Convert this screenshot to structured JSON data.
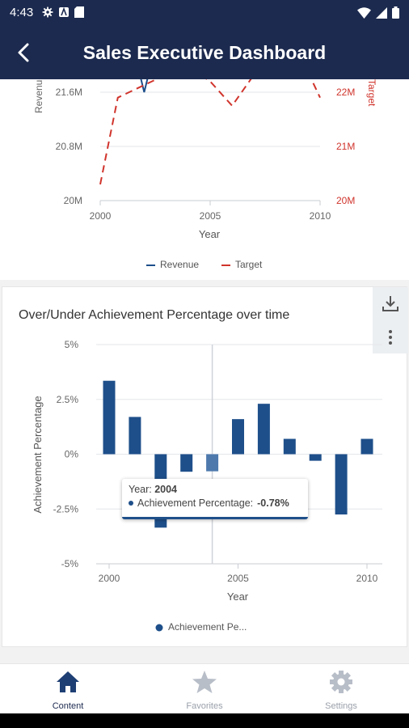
{
  "status_bar": {
    "time": "4:43"
  },
  "app_bar": {
    "title": "Sales Executive Dashboard"
  },
  "top_chart": {
    "chart_data": {
      "type": "line",
      "xlabel": "Year",
      "ylabel_left": "Revenue",
      "ylabel_right": "Target",
      "x_ticks": [
        "2000",
        "2005",
        "2010"
      ],
      "y_ticks_left": [
        "20M",
        "20.8M",
        "21.6M"
      ],
      "y_ticks_right": [
        "20M",
        "21M",
        "22M"
      ],
      "legend": [
        "Revenue",
        "Target"
      ],
      "legend_position": "bottom",
      "series": [
        {
          "name": "Revenue",
          "color": "#1e4f8a",
          "x": [
            2001.7,
            2002,
            2002.3
          ],
          "y": [
            22.0,
            21.6,
            22.0
          ]
        },
        {
          "name": "Target",
          "color": "#d0342c",
          "x": [
            2000,
            2000.8,
            2003.9,
            2005,
            2006,
            2007.3,
            2009.3,
            2010
          ],
          "y": [
            20.3,
            21.9,
            22.5,
            22.2,
            21.75,
            22.5,
            22.5,
            21.9
          ]
        }
      ]
    }
  },
  "bottom_chart": {
    "title": "Over/Under Achievement Percentage over time",
    "chart_data": {
      "type": "bar",
      "title": "Over/Under Achievement Percentage over time",
      "xlabel": "Year",
      "ylabel": "Achievement Percentage",
      "y_ticks": [
        "5%",
        "2.5%",
        "0%",
        "-2.5%",
        "-5%"
      ],
      "x_ticks": [
        "2000",
        "2005",
        "2010"
      ],
      "ylim": [
        -5,
        5
      ],
      "xlim": [
        1999.5,
        2010.6
      ],
      "legend": [
        "Achievement Pe..."
      ],
      "legend_position": "bottom",
      "color": "#1e4f8a",
      "x": [
        2000,
        2001,
        2002,
        2003,
        2004,
        2005,
        2006,
        2007,
        2008,
        2009,
        2010
      ],
      "values": [
        3.35,
        1.7,
        -3.35,
        -0.8,
        -0.78,
        1.6,
        2.3,
        0.7,
        -0.3,
        -2.75,
        0.7
      ]
    },
    "tooltip": {
      "year_label": "Year: ",
      "year_value": "2004",
      "metric_label": "Achievement Percentage: ",
      "metric_value": "-0.78%"
    }
  },
  "bottom_nav": {
    "items": [
      {
        "label": "Content",
        "icon": "home-icon"
      },
      {
        "label": "Favorites",
        "icon": "star-icon"
      },
      {
        "label": "Settings",
        "icon": "gear-icon"
      }
    ]
  }
}
